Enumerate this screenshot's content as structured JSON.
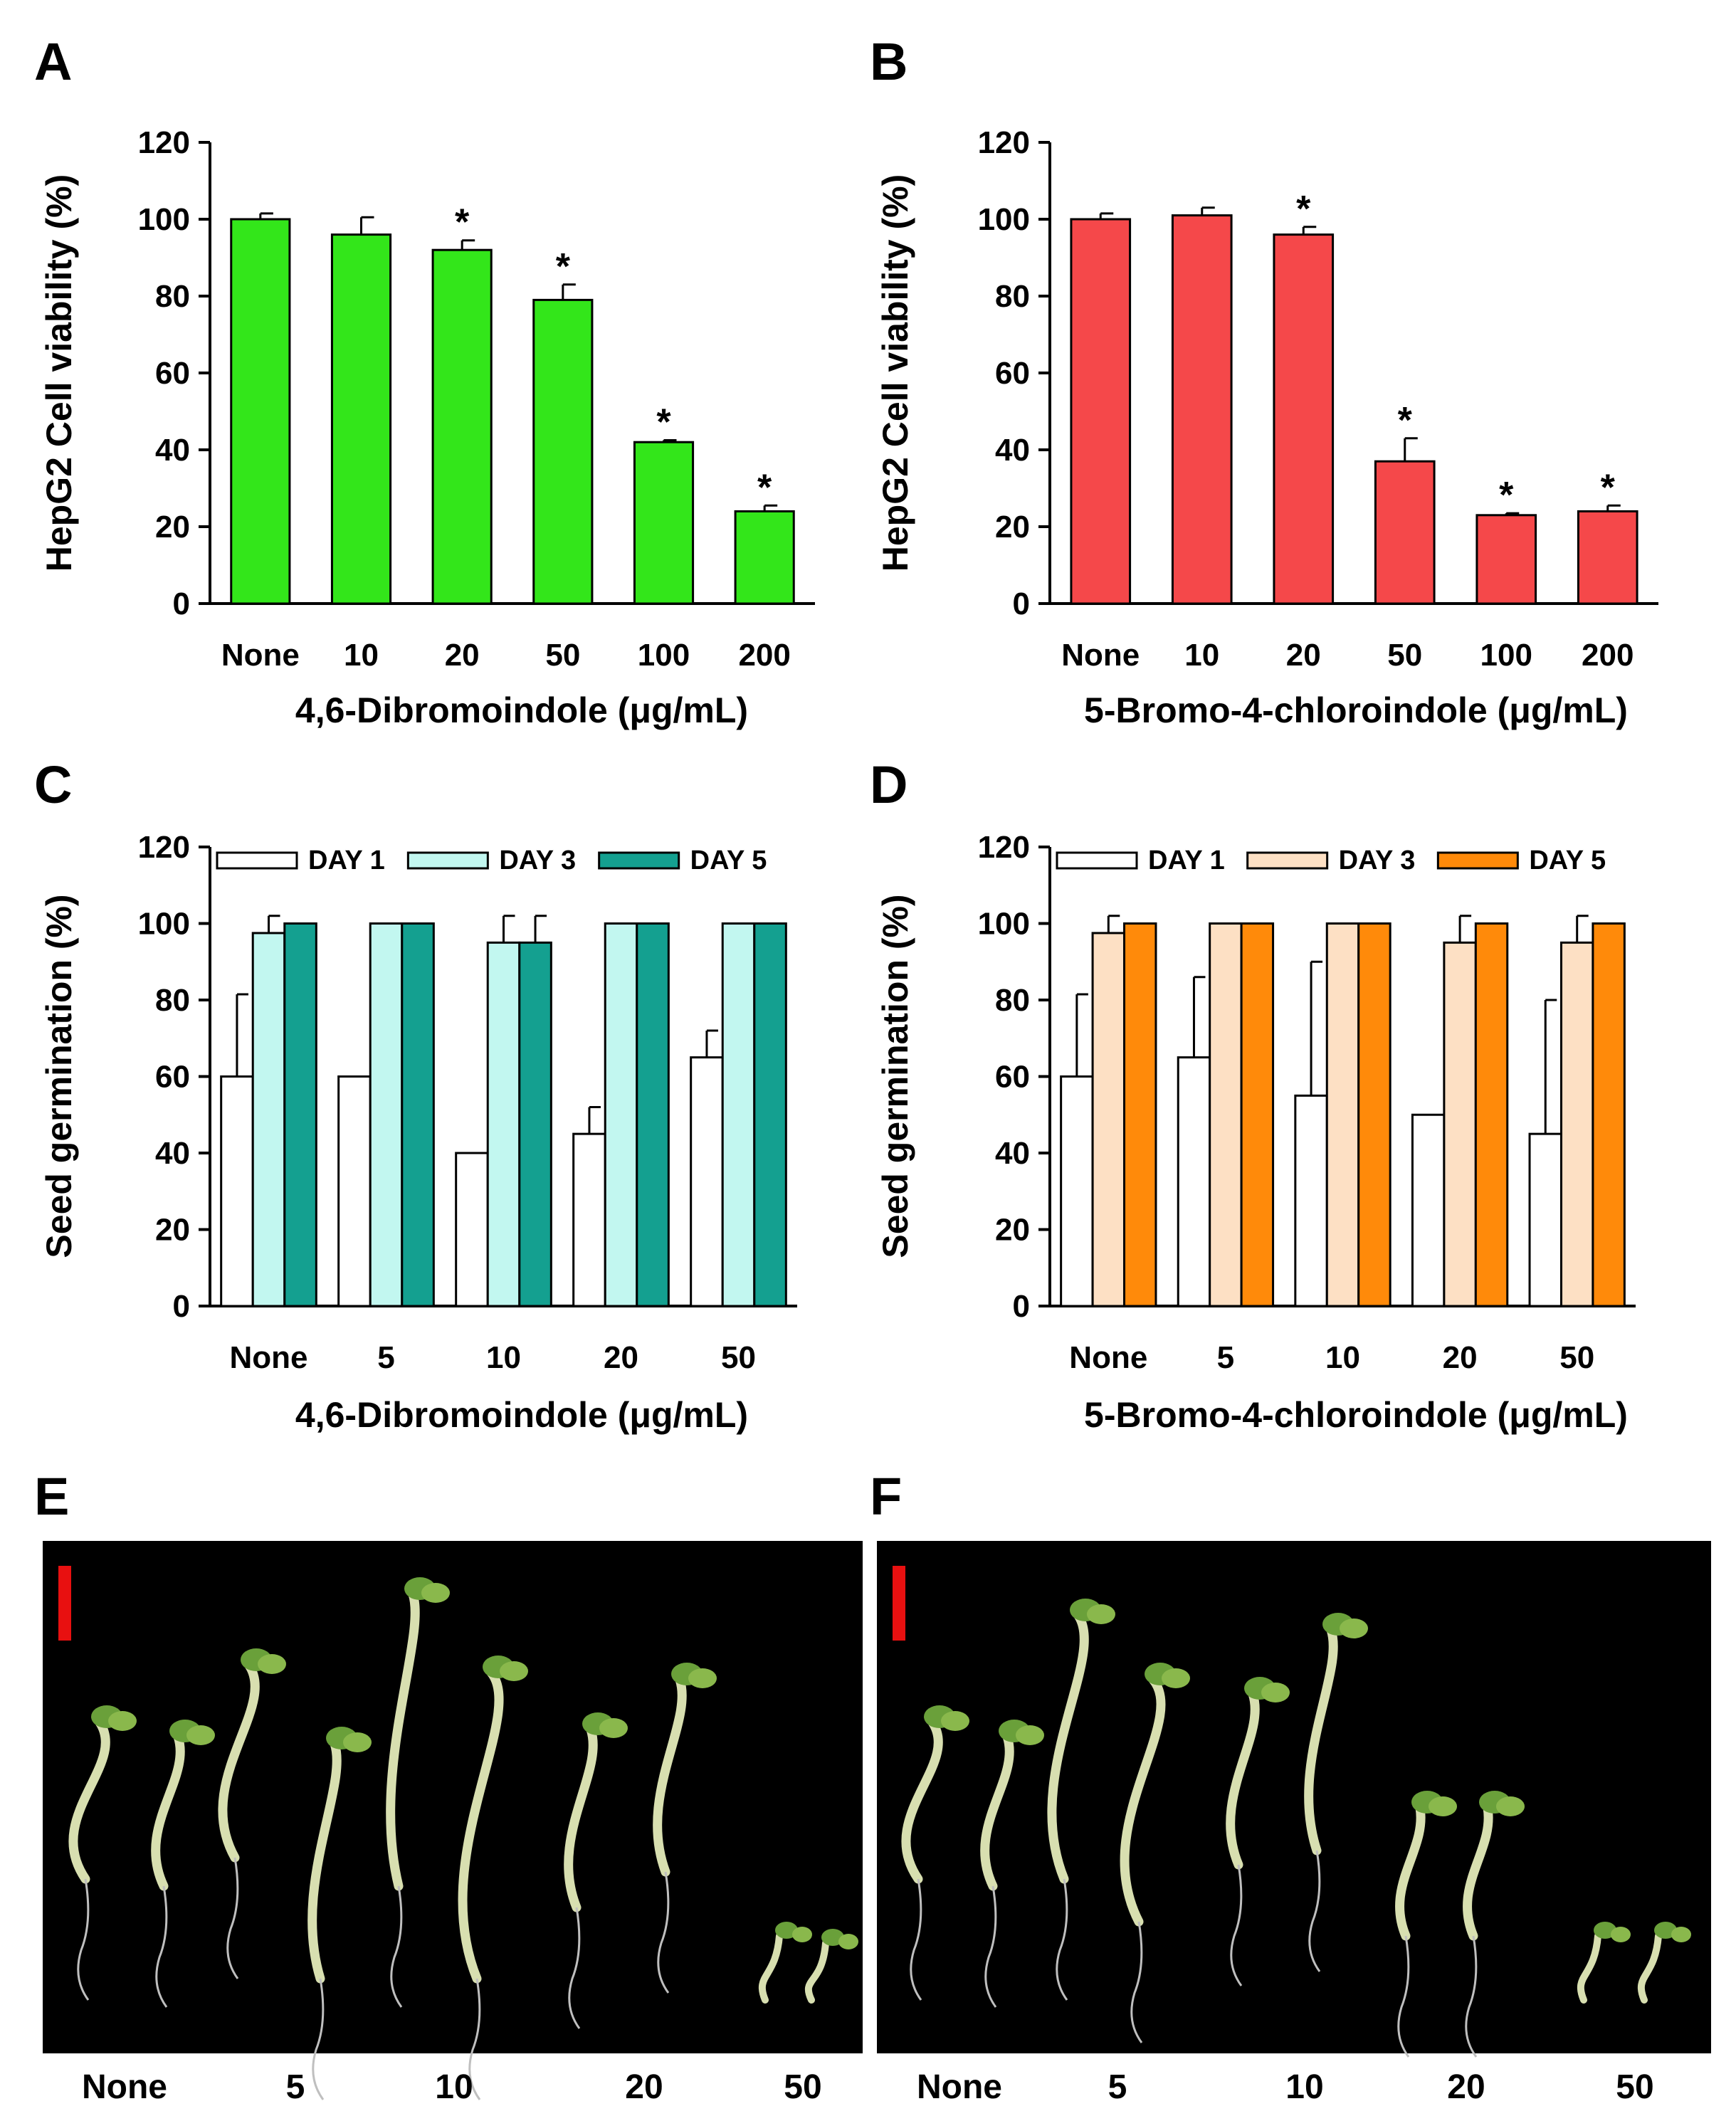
{
  "chart_data": [
    {
      "panel": "A",
      "type": "bar",
      "categories": [
        "None",
        "10",
        "20",
        "50",
        "100",
        "200"
      ],
      "values": [
        100,
        96,
        92,
        79,
        42,
        24
      ],
      "errors": [
        1.5,
        4.5,
        2.5,
        4,
        0.5,
        1.5
      ],
      "significant": [
        false,
        false,
        true,
        true,
        true,
        true
      ],
      "star_label": "*",
      "color": "#33e61a",
      "xlabel": "4,6-Dibromoindole (μg/mL)",
      "ylabel": "HepG2 Cell viability (%)",
      "ylim": [
        0,
        120
      ],
      "yticks": [
        "0",
        "20",
        "40",
        "60",
        "80",
        "100",
        "120"
      ]
    },
    {
      "panel": "B",
      "type": "bar",
      "categories": [
        "None",
        "10",
        "20",
        "50",
        "100",
        "200"
      ],
      "values": [
        100,
        101,
        96,
        37,
        23,
        24
      ],
      "errors": [
        1.5,
        2,
        2,
        6,
        0.5,
        1.5
      ],
      "significant": [
        false,
        false,
        true,
        true,
        true,
        true
      ],
      "star_label": "*",
      "color": "#f5484a",
      "xlabel": "5-Bromo-4-chloroindole (μg/mL)",
      "ylabel": "HepG2 Cell viability (%)",
      "ylim": [
        0,
        120
      ],
      "yticks": [
        "0",
        "20",
        "40",
        "60",
        "80",
        "100",
        "120"
      ]
    },
    {
      "panel": "C",
      "type": "bar",
      "categories": [
        "None",
        "5",
        "10",
        "20",
        "50"
      ],
      "series": [
        {
          "name": "DAY 1",
          "values": [
            60,
            60,
            40,
            45,
            65
          ],
          "errors": [
            21.5,
            0,
            0,
            7,
            7
          ],
          "color": "#ffffff"
        },
        {
          "name": "DAY 3",
          "values": [
            97.5,
            100,
            95,
            100,
            100
          ],
          "errors": [
            4.5,
            0,
            7,
            0,
            0
          ],
          "color": "#c2f7f0"
        },
        {
          "name": "DAY 5",
          "values": [
            100,
            100,
            95,
            100,
            100
          ],
          "errors": [
            0,
            0,
            7,
            0,
            0
          ],
          "color": "#14a090"
        }
      ],
      "xlabel": "4,6-Dibromoindole (μg/mL)",
      "ylabel": "Seed germination (%)",
      "ylim": [
        0,
        120
      ],
      "yticks": [
        "0",
        "20",
        "40",
        "60",
        "80",
        "100",
        "120"
      ]
    },
    {
      "panel": "D",
      "type": "bar",
      "categories": [
        "None",
        "5",
        "10",
        "20",
        "50"
      ],
      "series": [
        {
          "name": "DAY 1",
          "values": [
            60,
            65,
            55,
            50,
            45
          ],
          "errors": [
            21.5,
            21,
            35,
            0,
            35
          ],
          "color": "#ffffff"
        },
        {
          "name": "DAY 3",
          "values": [
            97.5,
            100,
            100,
            95,
            95
          ],
          "errors": [
            4.5,
            0,
            0,
            7,
            7
          ],
          "color": "#fde0c4"
        },
        {
          "name": "DAY 5",
          "values": [
            100,
            100,
            100,
            100,
            100
          ],
          "errors": [
            0,
            0,
            0,
            0,
            0
          ],
          "color": "#ff8a0a"
        }
      ],
      "xlabel": "5-Bromo-4-chloroindole (μg/mL)",
      "ylabel": "Seed germination (%)",
      "ylim": [
        0,
        120
      ],
      "yticks": [
        "0",
        "20",
        "40",
        "60",
        "80",
        "100",
        "120"
      ]
    }
  ],
  "photos": {
    "E": {
      "letter": "E",
      "labels": [
        "None",
        "5",
        "10",
        "20",
        "50"
      ]
    },
    "F": {
      "letter": "F",
      "labels": [
        "None",
        "5",
        "10",
        "20",
        "50"
      ]
    },
    "scale_bar_color": "#e81010",
    "background_color": "#000000"
  }
}
